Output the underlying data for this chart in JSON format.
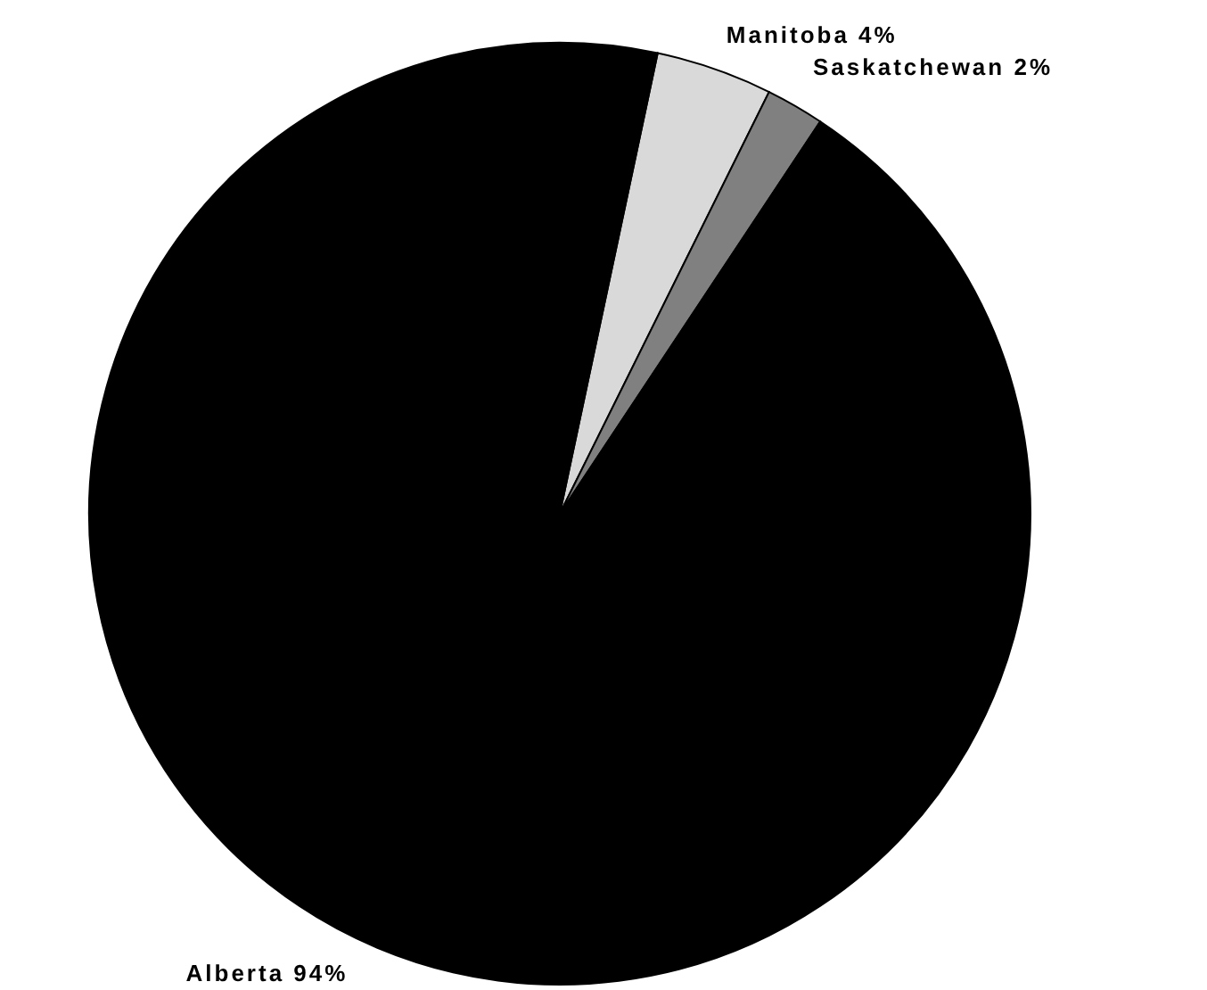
{
  "chart_data": {
    "type": "pie",
    "categories": [
      "Manitoba",
      "Saskatchewan",
      "Alberta"
    ],
    "values": [
      4,
      2,
      94
    ],
    "value_labels": [
      "4%",
      "2%",
      "94%"
    ],
    "colors": [
      "#d9d9d9",
      "#808080",
      "#000000"
    ]
  }
}
